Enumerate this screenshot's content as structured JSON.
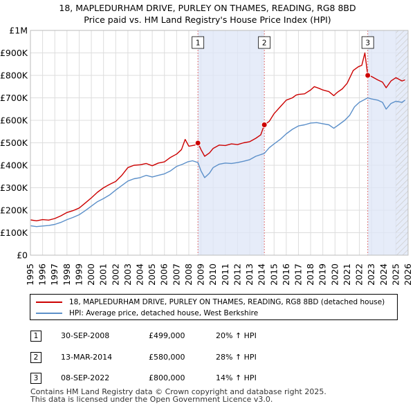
{
  "chart_data": {
    "type": "line",
    "title": "18, MAPLEDURHAM DRIVE, PURLEY ON THAMES, READING, RG8 8BD",
    "subtitle": "Price paid vs. HM Land Registry's House Price Index (HPI)",
    "xlabel": "",
    "ylabel": "",
    "xlim": [
      1995,
      2026
    ],
    "ylim": [
      0,
      1000000
    ],
    "x_ticks": [
      1995,
      1996,
      1997,
      1998,
      1999,
      2000,
      2001,
      2002,
      2003,
      2004,
      2005,
      2006,
      2007,
      2008,
      2009,
      2010,
      2011,
      2012,
      2013,
      2014,
      2015,
      2016,
      2017,
      2018,
      2019,
      2020,
      2021,
      2022,
      2023,
      2024,
      2025,
      2026
    ],
    "y_ticks": [
      {
        "value": 0,
        "label": "£0"
      },
      {
        "value": 100000,
        "label": "£100K"
      },
      {
        "value": 200000,
        "label": "£200K"
      },
      {
        "value": 300000,
        "label": "£300K"
      },
      {
        "value": 400000,
        "label": "£400K"
      },
      {
        "value": 500000,
        "label": "£500K"
      },
      {
        "value": 600000,
        "label": "£600K"
      },
      {
        "value": 700000,
        "label": "£700K"
      },
      {
        "value": 800000,
        "label": "£800K"
      },
      {
        "value": 900000,
        "label": "£900K"
      },
      {
        "value": 1000000,
        "label": "£1M"
      }
    ],
    "grid": true,
    "shaded_ranges": [
      [
        2008.75,
        2014.2
      ],
      [
        2022.69,
        2026
      ]
    ],
    "hatched_from": 2025.0,
    "series": [
      {
        "name": "18, MAPLEDURHAM DRIVE, PURLEY ON THAMES, READING, RG8 8BD (detached house)",
        "color": "#cc0000",
        "points": [
          [
            1995.0,
            157000
          ],
          [
            1995.5,
            153000
          ],
          [
            1996.0,
            158000
          ],
          [
            1996.5,
            156000
          ],
          [
            1997.0,
            163000
          ],
          [
            1997.5,
            175000
          ],
          [
            1998.0,
            190000
          ],
          [
            1998.5,
            198000
          ],
          [
            1999.0,
            210000
          ],
          [
            1999.5,
            232000
          ],
          [
            2000.0,
            255000
          ],
          [
            2000.5,
            280000
          ],
          [
            2001.0,
            300000
          ],
          [
            2001.5,
            315000
          ],
          [
            2002.0,
            328000
          ],
          [
            2002.5,
            355000
          ],
          [
            2003.0,
            390000
          ],
          [
            2003.5,
            400000
          ],
          [
            2004.0,
            402000
          ],
          [
            2004.5,
            408000
          ],
          [
            2005.0,
            398000
          ],
          [
            2005.5,
            410000
          ],
          [
            2006.0,
            415000
          ],
          [
            2006.5,
            435000
          ],
          [
            2007.0,
            450000
          ],
          [
            2007.4,
            470000
          ],
          [
            2007.7,
            515000
          ],
          [
            2008.0,
            485000
          ],
          [
            2008.5,
            490000
          ],
          [
            2008.75,
            499000
          ],
          [
            2009.0,
            470000
          ],
          [
            2009.3,
            440000
          ],
          [
            2009.7,
            455000
          ],
          [
            2010.0,
            475000
          ],
          [
            2010.5,
            490000
          ],
          [
            2011.0,
            488000
          ],
          [
            2011.5,
            495000
          ],
          [
            2012.0,
            492000
          ],
          [
            2012.5,
            500000
          ],
          [
            2013.0,
            505000
          ],
          [
            2013.5,
            520000
          ],
          [
            2013.9,
            535000
          ],
          [
            2014.2,
            580000
          ],
          [
            2014.6,
            595000
          ],
          [
            2015.0,
            630000
          ],
          [
            2015.5,
            660000
          ],
          [
            2016.0,
            690000
          ],
          [
            2016.5,
            700000
          ],
          [
            2016.8,
            712000
          ],
          [
            2017.0,
            715000
          ],
          [
            2017.5,
            718000
          ],
          [
            2018.0,
            735000
          ],
          [
            2018.3,
            750000
          ],
          [
            2018.7,
            742000
          ],
          [
            2019.0,
            735000
          ],
          [
            2019.5,
            728000
          ],
          [
            2019.9,
            710000
          ],
          [
            2020.2,
            725000
          ],
          [
            2020.6,
            740000
          ],
          [
            2021.0,
            765000
          ],
          [
            2021.5,
            822000
          ],
          [
            2021.9,
            838000
          ],
          [
            2022.2,
            845000
          ],
          [
            2022.45,
            900000
          ],
          [
            2022.69,
            800000
          ],
          [
            2023.0,
            795000
          ],
          [
            2023.5,
            780000
          ],
          [
            2023.9,
            770000
          ],
          [
            2024.2,
            745000
          ],
          [
            2024.6,
            775000
          ],
          [
            2025.0,
            790000
          ],
          [
            2025.5,
            775000
          ],
          [
            2025.75,
            780000
          ]
        ]
      },
      {
        "name": "HPI: Average price, detached house, West Berkshire",
        "color": "#5b8fc9",
        "points": [
          [
            1995.0,
            131000
          ],
          [
            1995.5,
            127000
          ],
          [
            1996.0,
            130000
          ],
          [
            1996.5,
            132000
          ],
          [
            1997.0,
            137000
          ],
          [
            1997.5,
            146000
          ],
          [
            1998.0,
            158000
          ],
          [
            1998.5,
            168000
          ],
          [
            1999.0,
            180000
          ],
          [
            1999.5,
            198000
          ],
          [
            2000.0,
            218000
          ],
          [
            2000.5,
            238000
          ],
          [
            2001.0,
            252000
          ],
          [
            2001.5,
            268000
          ],
          [
            2002.0,
            290000
          ],
          [
            2002.5,
            310000
          ],
          [
            2003.0,
            330000
          ],
          [
            2003.5,
            340000
          ],
          [
            2004.0,
            345000
          ],
          [
            2004.5,
            355000
          ],
          [
            2005.0,
            348000
          ],
          [
            2005.5,
            355000
          ],
          [
            2006.0,
            362000
          ],
          [
            2006.5,
            375000
          ],
          [
            2007.0,
            395000
          ],
          [
            2007.5,
            405000
          ],
          [
            2007.9,
            415000
          ],
          [
            2008.3,
            420000
          ],
          [
            2008.75,
            412000
          ],
          [
            2009.0,
            375000
          ],
          [
            2009.3,
            345000
          ],
          [
            2009.7,
            365000
          ],
          [
            2010.0,
            390000
          ],
          [
            2010.5,
            405000
          ],
          [
            2011.0,
            410000
          ],
          [
            2011.5,
            408000
          ],
          [
            2012.0,
            412000
          ],
          [
            2012.5,
            418000
          ],
          [
            2013.0,
            425000
          ],
          [
            2013.5,
            440000
          ],
          [
            2014.2,
            453000
          ],
          [
            2014.6,
            478000
          ],
          [
            2015.0,
            495000
          ],
          [
            2015.5,
            515000
          ],
          [
            2016.0,
            540000
          ],
          [
            2016.5,
            560000
          ],
          [
            2017.0,
            575000
          ],
          [
            2017.5,
            580000
          ],
          [
            2018.0,
            588000
          ],
          [
            2018.5,
            590000
          ],
          [
            2019.0,
            585000
          ],
          [
            2019.5,
            580000
          ],
          [
            2019.9,
            565000
          ],
          [
            2020.3,
            580000
          ],
          [
            2020.8,
            600000
          ],
          [
            2021.2,
            622000
          ],
          [
            2021.6,
            660000
          ],
          [
            2022.0,
            680000
          ],
          [
            2022.69,
            700000
          ],
          [
            2023.0,
            695000
          ],
          [
            2023.5,
            690000
          ],
          [
            2023.9,
            680000
          ],
          [
            2024.2,
            650000
          ],
          [
            2024.6,
            675000
          ],
          [
            2025.0,
            685000
          ],
          [
            2025.5,
            680000
          ],
          [
            2025.75,
            690000
          ]
        ]
      }
    ],
    "sales": [
      {
        "id": "1",
        "x": 2008.75,
        "y": 499000
      },
      {
        "id": "2",
        "x": 2014.2,
        "y": 580000
      },
      {
        "id": "3",
        "x": 2022.69,
        "y": 800000
      }
    ]
  },
  "legend": {
    "property_label": "18, MAPLEDURHAM DRIVE, PURLEY ON THAMES, READING, RG8 8BD (detached house)",
    "hpi_label": "HPI: Average price, detached house, West Berkshire"
  },
  "transactions": [
    {
      "num": "1",
      "date": "30-SEP-2008",
      "price": "£499,000",
      "hpi": "20% ↑ HPI"
    },
    {
      "num": "2",
      "date": "13-MAR-2014",
      "price": "£580,000",
      "hpi": "28% ↑ HPI"
    },
    {
      "num": "3",
      "date": "08-SEP-2022",
      "price": "£800,000",
      "hpi": "14% ↑ HPI"
    }
  ],
  "footer": {
    "line1": "Contains HM Land Registry data © Crown copyright and database right 2025.",
    "line2": "This data is licensed under the Open Government Licence v3.0."
  }
}
